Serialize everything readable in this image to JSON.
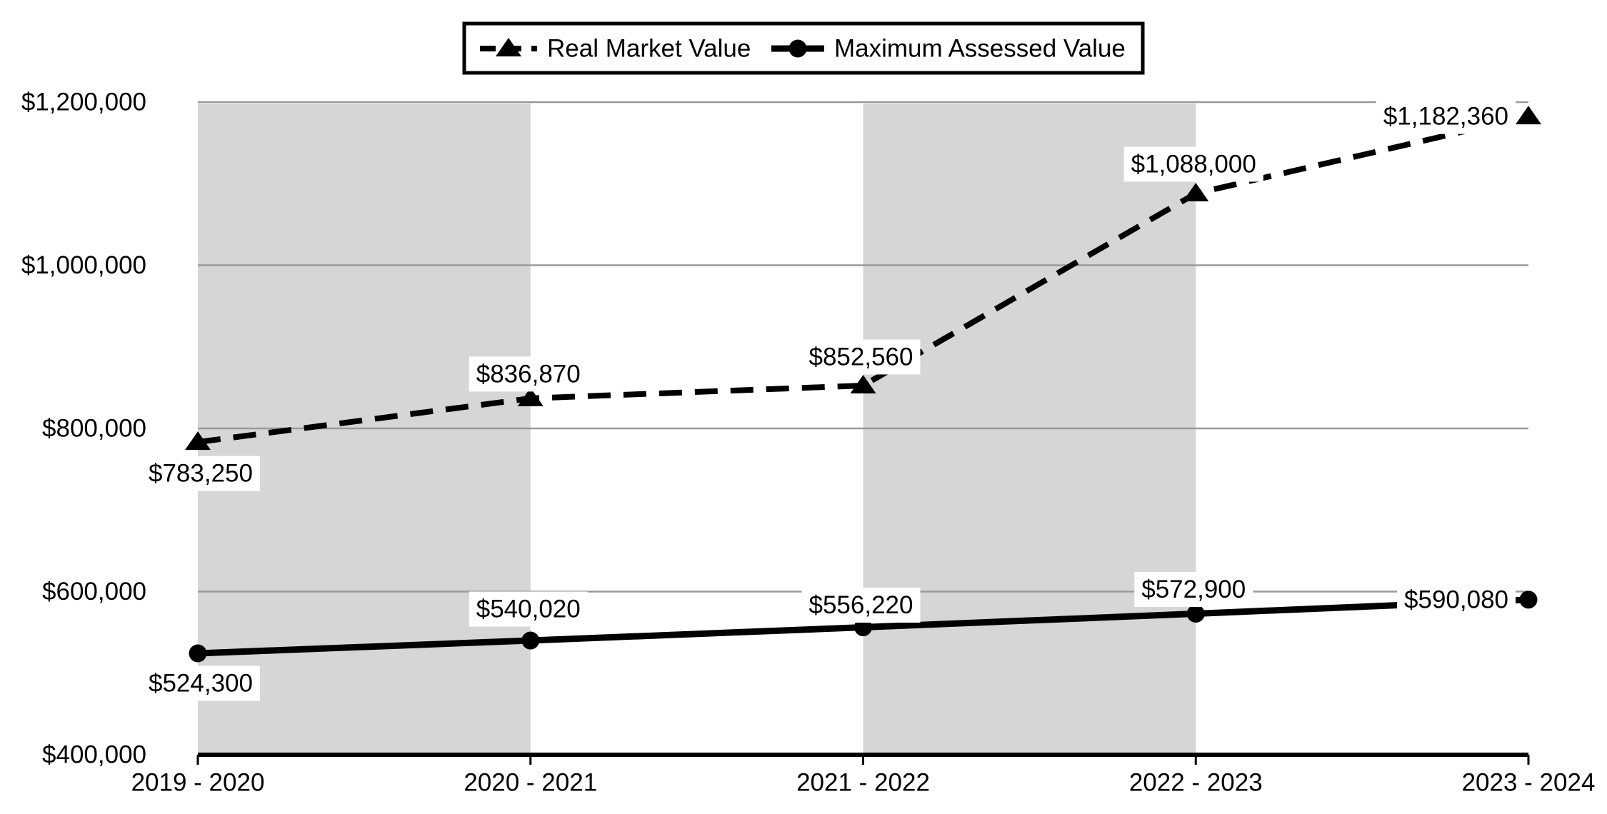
{
  "chart_data": {
    "type": "line",
    "title": "",
    "categories": [
      "2019 - 2020",
      "2020 - 2021",
      "2021 - 2022",
      "2022 - 2023",
      "2023 - 2024"
    ],
    "series": [
      {
        "name": "Real Market Value",
        "line_style": "dashed",
        "marker": "triangle",
        "color": "#000000",
        "values": [
          783250,
          836870,
          852560,
          1088000,
          1182360
        ],
        "data_labels": [
          "$783,250",
          "$836,870",
          "$852,560",
          "$1,088,000",
          "$1,182,360"
        ]
      },
      {
        "name": "Maximum Assessed Value",
        "line_style": "solid",
        "marker": "circle",
        "color": "#000000",
        "values": [
          524300,
          540020,
          556220,
          572900,
          590080
        ],
        "data_labels": [
          "$524,300",
          "$540,020",
          "$556,220",
          "$572,900",
          "$590,080"
        ]
      }
    ],
    "y_axis": {
      "min": 400000,
      "max": 1200000,
      "step": 200000,
      "tick_labels": [
        "$400,000",
        "$600,000",
        "$800,000",
        "$1,000,000",
        "$1,200,000"
      ]
    },
    "x_axis": {
      "tick_labels": [
        "2019 - 2020",
        "2020 - 2021",
        "2021 - 2022",
        "2022 - 2023",
        "2023 - 2024"
      ]
    },
    "legend": {
      "position": "top",
      "entries": [
        "Real Market Value",
        "Maximum Assessed Value"
      ]
    },
    "grid": "horizontal",
    "plot_bands": "alternating gray columns on intervals 1 and 3",
    "colors": {
      "series": "#000000",
      "gridline": "#9a9a9a",
      "band": "#d6d6d6",
      "label_background": "#ffffff",
      "background": "#ffffff"
    }
  }
}
